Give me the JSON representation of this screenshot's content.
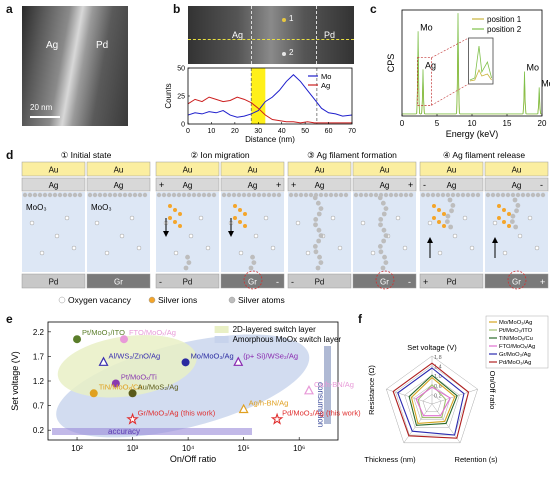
{
  "panels": {
    "a": {
      "label": "a",
      "left_text": "Ag",
      "right_text": "Pd",
      "scale": "20 nm"
    },
    "b": {
      "label": "b",
      "img_left": "Ag",
      "img_right": "Pd",
      "point1": "1",
      "point2": "2"
    },
    "c": {
      "label": "c"
    },
    "d": {
      "label": "d",
      "steps": [
        "① Initial state",
        "② Ion migration",
        "③ Ag filament formation",
        "④ Ag filament release"
      ],
      "top_electrode": "Au",
      "active_electrode": "Ag",
      "switch_layer": "MoO₃",
      "bottom_left": "Pd",
      "bottom_right": "Gr",
      "plus": "+",
      "minus": "-",
      "legend": [
        "Oxygen vacancy",
        "Silver ions",
        "Silver atoms"
      ]
    },
    "e": {
      "label": "e"
    },
    "f": {
      "label": "f"
    }
  },
  "chart_data": [
    {
      "id": "b",
      "type": "line",
      "xlabel": "Distance (nm)",
      "ylabel": "Counts",
      "xlim": [
        0,
        70
      ],
      "ylim": [
        0,
        50
      ],
      "xticks": [
        0,
        10,
        20,
        30,
        40,
        50,
        60,
        70
      ],
      "yticks": [
        0,
        25,
        50
      ],
      "highlight_band": [
        27,
        33
      ],
      "dashed_lines_x": [
        27,
        55
      ],
      "colors": {
        "Mo": "#1f1fcc",
        "Ag": "#cc1f1f",
        "highlight": "#ffee00"
      },
      "series": [
        {
          "name": "Mo",
          "x": [
            0,
            3,
            6,
            9,
            12,
            15,
            18,
            21,
            24,
            27,
            30,
            33,
            36,
            39,
            42,
            45,
            48,
            51,
            54,
            57,
            60,
            63,
            66,
            70
          ],
          "values": [
            8,
            10,
            9,
            11,
            10,
            12,
            8,
            6,
            7,
            9,
            12,
            20,
            24,
            30,
            38,
            44,
            38,
            30,
            22,
            14,
            10,
            9,
            7,
            8
          ]
        },
        {
          "name": "Ag",
          "x": [
            0,
            3,
            6,
            9,
            12,
            15,
            18,
            21,
            24,
            27,
            30,
            33,
            36,
            39,
            42,
            45,
            48,
            51,
            54,
            57,
            60,
            63,
            66,
            70
          ],
          "values": [
            18,
            22,
            20,
            24,
            22,
            20,
            21,
            24,
            22,
            19,
            14,
            8,
            4,
            3,
            2,
            2,
            1,
            2,
            1,
            1,
            1,
            1,
            1,
            1
          ]
        }
      ]
    },
    {
      "id": "c",
      "type": "line",
      "xlabel": "Energy (keV)",
      "ylabel": "CPS",
      "xlim": [
        0,
        20
      ],
      "xticks": [
        0,
        5,
        10,
        15,
        20
      ],
      "colors": {
        "position 1": "#c8b43c",
        "position 2": "#7fc04a"
      },
      "series": [
        {
          "name": "position 1"
        },
        {
          "name": "position 2"
        }
      ],
      "peaks": [
        {
          "x": 2.3,
          "h": 0.78,
          "label": "Mo"
        },
        {
          "x": 3.0,
          "h": 0.42,
          "label": "Ag"
        },
        {
          "x": 8.0,
          "h": 0.95,
          "label": ""
        },
        {
          "x": 17.5,
          "h": 0.4,
          "label": "Mo"
        },
        {
          "x": 19.6,
          "h": 0.25,
          "label": "Mo"
        }
      ]
    },
    {
      "id": "e",
      "type": "scatter",
      "xlabel": "On/Off ratio",
      "ylabel": "Set voltage (V)",
      "xscale": "log",
      "xlim": [
        30,
        5000000
      ],
      "ylim": [
        0,
        2.4
      ],
      "xticks": [
        "10²",
        "10³",
        "10⁴",
        "10⁵",
        "10⁶"
      ],
      "yticks": [
        0.2,
        0.7,
        1.2,
        1.7,
        2.2
      ],
      "legend": [
        "2D-layered switch layer",
        "Amorphous MoOx switch layer"
      ],
      "arrows": [
        "accuracy",
        "consumption"
      ],
      "points": [
        {
          "label": "Pt/MoO₃/ITO",
          "x": 100,
          "y": 2.05,
          "color": "#5a7d2a",
          "shape": "circle"
        },
        {
          "label": "FTO/MoOₓ/Ag",
          "x": 700,
          "y": 2.05,
          "color": "#e89ad8",
          "shape": "circle"
        },
        {
          "label": "Al/WS₂/ZnO/Ag",
          "x": 300,
          "y": 1.58,
          "color": "#3a2fb0",
          "shape": "triangle"
        },
        {
          "label": "Mo/MoO₃/Ag",
          "x": 9000,
          "y": 1.58,
          "color": "#2a2aa0",
          "shape": "circle"
        },
        {
          "label": "(p+ Si)/WSe₂/Ag",
          "x": 80000,
          "y": 1.58,
          "color": "#8a2ab0",
          "shape": "triangle"
        },
        {
          "label": "Pt/MoOₓ/Ti",
          "x": 500,
          "y": 1.15,
          "color": "#8a3ab0",
          "shape": "circle"
        },
        {
          "label": "TiN/MoOₓ/Cu",
          "x": 200,
          "y": 0.95,
          "color": "#e0a020",
          "shape": "circle"
        },
        {
          "label": "Au/MoS₂/Ag",
          "x": 1000,
          "y": 0.95,
          "color": "#5a5a1a",
          "shape": "circle"
        },
        {
          "label": "Ag/h-BN/Ag",
          "x": 100000,
          "y": 0.62,
          "color": "#e0a020",
          "shape": "triangle"
        },
        {
          "label": "Cu/h-BN/Ag",
          "x": 1500000,
          "y": 1.0,
          "color": "#e89ad8",
          "shape": "triangle"
        },
        {
          "label": "Gr/MoO₃/Ag (this work)",
          "x": 1000,
          "y": 0.42,
          "color": "#e03030",
          "shape": "star"
        },
        {
          "label": "Pd/MoO₃/Ag (this work)",
          "x": 400000,
          "y": 0.42,
          "color": "#e03030",
          "shape": "star"
        }
      ]
    },
    {
      "id": "f",
      "type": "radar",
      "axes": [
        "Set voltage (V)",
        "On/Off ratio",
        "Retention (s)",
        "Thickness (nm)",
        "Resistance (Ω)"
      ],
      "ring_labels": [
        "0.2",
        "0.6",
        "1.0",
        "1.4",
        "1.8"
      ],
      "series": [
        {
          "name": "Mo/MoO₃/Ag",
          "color": "#d6a520",
          "values": [
            0.55,
            0.5,
            0.45,
            0.5,
            0.45
          ]
        },
        {
          "name": "Pt/MoO₃/ITO",
          "color": "#a0c070",
          "values": [
            0.4,
            0.3,
            0.35,
            0.35,
            0.3
          ]
        },
        {
          "name": "TiN/MoOₓ/Cu",
          "color": "#2a6a2a",
          "values": [
            0.6,
            0.55,
            0.5,
            0.55,
            0.5
          ]
        },
        {
          "name": "FTO/MoOₓ/Ag",
          "color": "#e070d0",
          "values": [
            0.35,
            0.4,
            0.3,
            0.3,
            0.35
          ]
        },
        {
          "name": "Gr/MoO₃/Ag",
          "color": "#2a2ab0",
          "values": [
            0.75,
            0.7,
            0.8,
            0.7,
            0.75
          ]
        },
        {
          "name": "Pd/MoO₃/Ag",
          "color": "#b02020",
          "values": [
            0.85,
            0.8,
            0.88,
            0.82,
            0.85
          ]
        }
      ]
    }
  ]
}
